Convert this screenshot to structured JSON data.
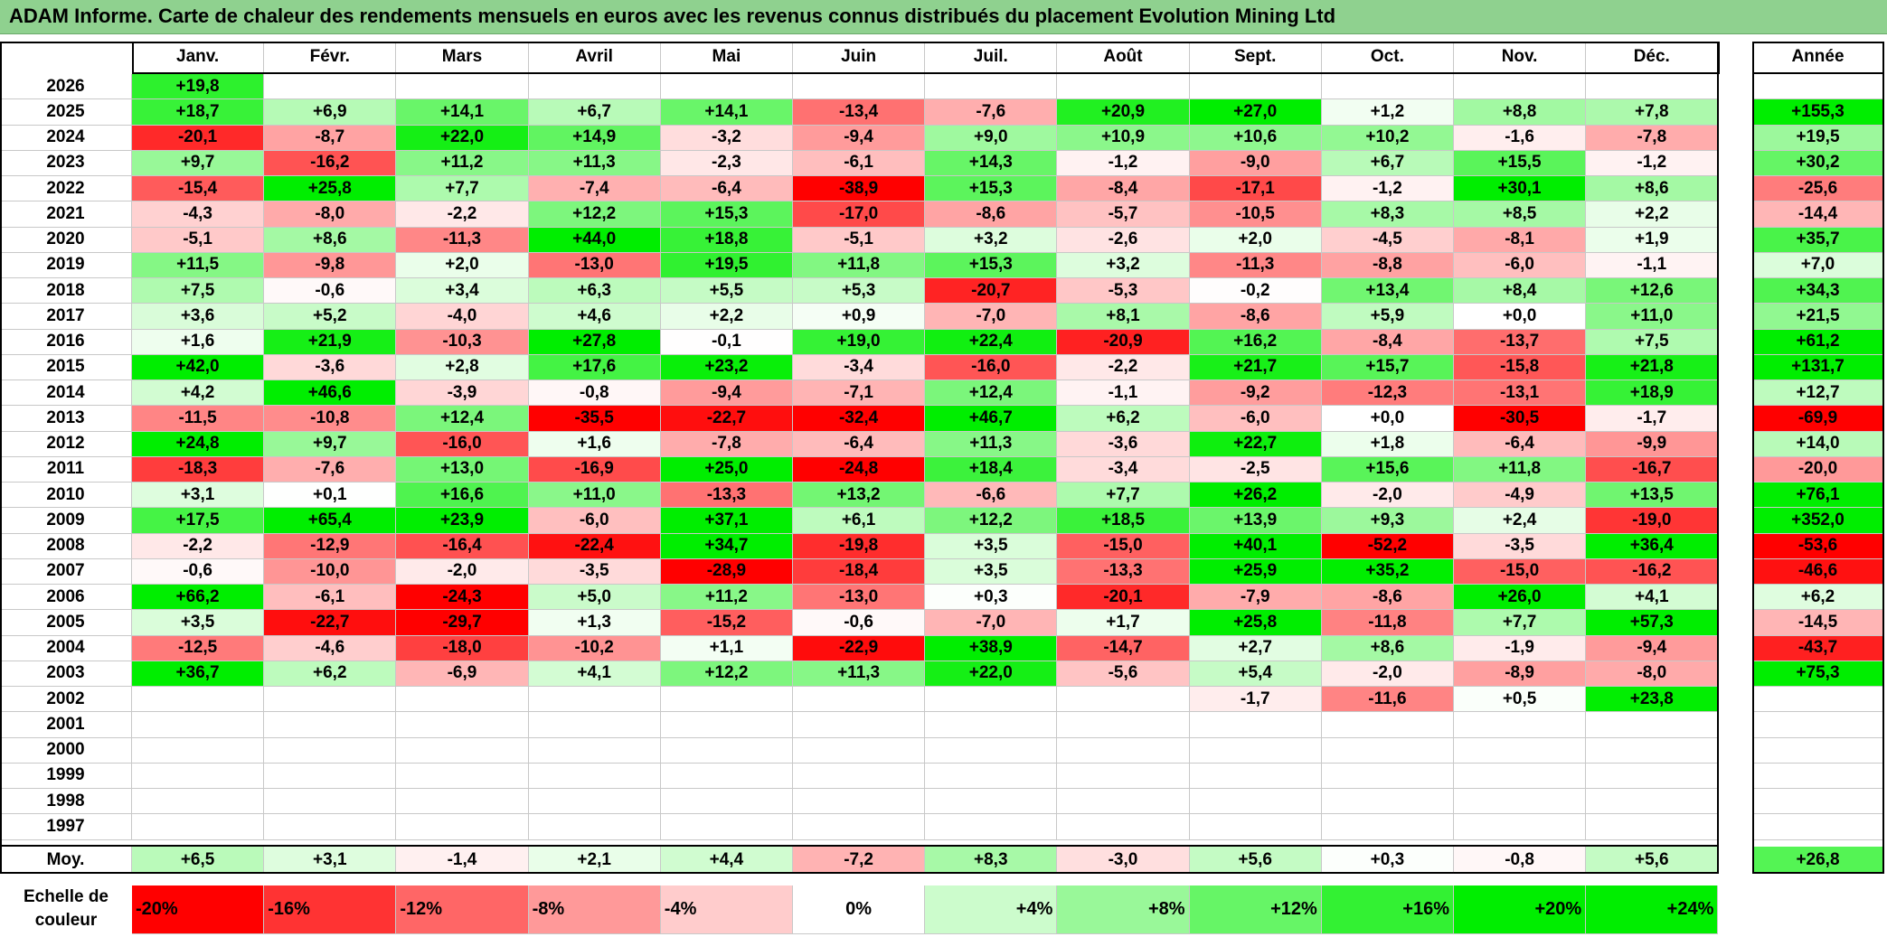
{
  "title": "ADAM Informe. Carte de chaleur des rendements mensuels en euros avec les revenus connus distribués du placement Evolution Mining Ltd",
  "chart_data": {
    "type": "heatmap",
    "months": [
      "Janv.",
      "Févr.",
      "Mars",
      "Avril",
      "Mai",
      "Juin",
      "Juil.",
      "Août",
      "Sept.",
      "Oct.",
      "Nov.",
      "Déc."
    ],
    "annual_header": "Année",
    "rows": [
      {
        "year": "2026",
        "values": [
          "+19,8",
          "",
          "",
          "",
          "",
          "",
          "",
          "",
          "",
          "",
          "",
          ""
        ],
        "annual": ""
      },
      {
        "year": "2025",
        "values": [
          "+18,7",
          "+6,9",
          "+14,1",
          "+6,7",
          "+14,1",
          "-13,4",
          "-7,6",
          "+20,9",
          "+27,0",
          "+1,2",
          "+8,8",
          "+7,8"
        ],
        "annual": "+155,3"
      },
      {
        "year": "2024",
        "values": [
          "-20,1",
          "-8,7",
          "+22,0",
          "+14,9",
          "-3,2",
          "-9,4",
          "+9,0",
          "+10,9",
          "+10,6",
          "+10,2",
          "-1,6",
          "-7,8"
        ],
        "annual": "+19,5"
      },
      {
        "year": "2023",
        "values": [
          "+9,7",
          "-16,2",
          "+11,2",
          "+11,3",
          "-2,3",
          "-6,1",
          "+14,3",
          "-1,2",
          "-9,0",
          "+6,7",
          "+15,5",
          "-1,2"
        ],
        "annual": "+30,2"
      },
      {
        "year": "2022",
        "values": [
          "-15,4",
          "+25,8",
          "+7,7",
          "-7,4",
          "-6,4",
          "-38,9",
          "+15,3",
          "-8,4",
          "-17,1",
          "-1,2",
          "+30,1",
          "+8,6"
        ],
        "annual": "-25,6"
      },
      {
        "year": "2021",
        "values": [
          "-4,3",
          "-8,0",
          "-2,2",
          "+12,2",
          "+15,3",
          "-17,0",
          "-8,6",
          "-5,7",
          "-10,5",
          "+8,3",
          "+8,5",
          "+2,2"
        ],
        "annual": "-14,4"
      },
      {
        "year": "2020",
        "values": [
          "-5,1",
          "+8,6",
          "-11,3",
          "+44,0",
          "+18,8",
          "-5,1",
          "+3,2",
          "-2,6",
          "+2,0",
          "-4,5",
          "-8,1",
          "+1,9"
        ],
        "annual": "+35,7"
      },
      {
        "year": "2019",
        "values": [
          "+11,5",
          "-9,8",
          "+2,0",
          "-13,0",
          "+19,5",
          "+11,8",
          "+15,3",
          "+3,2",
          "-11,3",
          "-8,8",
          "-6,0",
          "-1,1"
        ],
        "annual": "+7,0"
      },
      {
        "year": "2018",
        "values": [
          "+7,5",
          "-0,6",
          "+3,4",
          "+6,3",
          "+5,5",
          "+5,3",
          "-20,7",
          "-5,3",
          "-0,2",
          "+13,4",
          "+8,4",
          "+12,6"
        ],
        "annual": "+34,3"
      },
      {
        "year": "2017",
        "values": [
          "+3,6",
          "+5,2",
          "-4,0",
          "+4,6",
          "+2,2",
          "+0,9",
          "-7,0",
          "+8,1",
          "-8,6",
          "+5,9",
          "+0,0",
          "+11,0"
        ],
        "annual": "+21,5"
      },
      {
        "year": "2016",
        "values": [
          "+1,6",
          "+21,9",
          "-10,3",
          "+27,8",
          "-0,1",
          "+19,0",
          "+22,4",
          "-20,9",
          "+16,2",
          "-8,4",
          "-13,7",
          "+7,5"
        ],
        "annual": "+61,2"
      },
      {
        "year": "2015",
        "values": [
          "+42,0",
          "-3,6",
          "+2,8",
          "+17,6",
          "+23,2",
          "-3,4",
          "-16,0",
          "-2,2",
          "+21,7",
          "+15,7",
          "-15,8",
          "+21,8"
        ],
        "annual": "+131,7"
      },
      {
        "year": "2014",
        "values": [
          "+4,2",
          "+46,6",
          "-3,9",
          "-0,8",
          "-9,4",
          "-7,1",
          "+12,4",
          "-1,1",
          "-9,2",
          "-12,3",
          "-13,1",
          "+18,9"
        ],
        "annual": "+12,7"
      },
      {
        "year": "2013",
        "values": [
          "-11,5",
          "-10,8",
          "+12,4",
          "-35,5",
          "-22,7",
          "-32,4",
          "+46,7",
          "+6,2",
          "-6,0",
          "+0,0",
          "-30,5",
          "-1,7"
        ],
        "annual": "-69,9"
      },
      {
        "year": "2012",
        "values": [
          "+24,8",
          "+9,7",
          "-16,0",
          "+1,6",
          "-7,8",
          "-6,4",
          "+11,3",
          "-3,6",
          "+22,7",
          "+1,8",
          "-6,4",
          "-9,9"
        ],
        "annual": "+14,0"
      },
      {
        "year": "2011",
        "values": [
          "-18,3",
          "-7,6",
          "+13,0",
          "-16,9",
          "+25,0",
          "-24,8",
          "+18,4",
          "-3,4",
          "-2,5",
          "+15,6",
          "+11,8",
          "-16,7"
        ],
        "annual": "-20,0"
      },
      {
        "year": "2010",
        "values": [
          "+3,1",
          "+0,1",
          "+16,6",
          "+11,0",
          "-13,3",
          "+13,2",
          "-6,6",
          "+7,7",
          "+26,2",
          "-2,0",
          "-4,9",
          "+13,5"
        ],
        "annual": "+76,1"
      },
      {
        "year": "2009",
        "values": [
          "+17,5",
          "+65,4",
          "+23,9",
          "-6,0",
          "+37,1",
          "+6,1",
          "+12,2",
          "+18,5",
          "+13,9",
          "+9,3",
          "+2,4",
          "-19,0"
        ],
        "annual": "+352,0"
      },
      {
        "year": "2008",
        "values": [
          "-2,2",
          "-12,9",
          "-16,4",
          "-22,4",
          "+34,7",
          "-19,8",
          "+3,5",
          "-15,0",
          "+40,1",
          "-52,2",
          "-3,5",
          "+36,4"
        ],
        "annual": "-53,6"
      },
      {
        "year": "2007",
        "values": [
          "-0,6",
          "-10,0",
          "-2,0",
          "-3,5",
          "-28,9",
          "-18,4",
          "+3,5",
          "-13,3",
          "+25,9",
          "+35,2",
          "-15,0",
          "-16,2"
        ],
        "annual": "-46,6"
      },
      {
        "year": "2006",
        "values": [
          "+66,2",
          "-6,1",
          "-24,3",
          "+5,0",
          "+11,2",
          "-13,0",
          "+0,3",
          "-20,1",
          "-7,9",
          "-8,6",
          "+26,0",
          "+4,1"
        ],
        "annual": "+6,2"
      },
      {
        "year": "2005",
        "values": [
          "+3,5",
          "-22,7",
          "-29,7",
          "+1,3",
          "-15,2",
          "-0,6",
          "-7,0",
          "+1,7",
          "+25,8",
          "-11,8",
          "+7,7",
          "+57,3"
        ],
        "annual": "-14,5"
      },
      {
        "year": "2004",
        "values": [
          "-12,5",
          "-4,6",
          "-18,0",
          "-10,2",
          "+1,1",
          "-22,9",
          "+38,9",
          "-14,7",
          "+2,7",
          "+8,6",
          "-1,9",
          "-9,4"
        ],
        "annual": "-43,7"
      },
      {
        "year": "2003",
        "values": [
          "+36,7",
          "+6,2",
          "-6,9",
          "+4,1",
          "+12,2",
          "+11,3",
          "+22,0",
          "-5,6",
          "+5,4",
          "-2,0",
          "-8,9",
          "-8,0"
        ],
        "annual": "+75,3"
      },
      {
        "year": "2002",
        "values": [
          "",
          "",
          "",
          "",
          "",
          "",
          "",
          "",
          "-1,7",
          "-11,6",
          "+0,5",
          "+23,8"
        ],
        "annual": ""
      },
      {
        "year": "2001",
        "values": [
          "",
          "",
          "",
          "",
          "",
          "",
          "",
          "",
          "",
          "",
          "",
          ""
        ],
        "annual": ""
      },
      {
        "year": "2000",
        "values": [
          "",
          "",
          "",
          "",
          "",
          "",
          "",
          "",
          "",
          "",
          "",
          ""
        ],
        "annual": ""
      },
      {
        "year": "1999",
        "values": [
          "",
          "",
          "",
          "",
          "",
          "",
          "",
          "",
          "",
          "",
          "",
          ""
        ],
        "annual": ""
      },
      {
        "year": "1998",
        "values": [
          "",
          "",
          "",
          "",
          "",
          "",
          "",
          "",
          "",
          "",
          "",
          ""
        ],
        "annual": ""
      },
      {
        "year": "1997",
        "values": [
          "",
          "",
          "",
          "",
          "",
          "",
          "",
          "",
          "",
          "",
          "",
          ""
        ],
        "annual": ""
      }
    ],
    "average": {
      "label": "Moy.",
      "values": [
        "+6,5",
        "+3,1",
        "-1,4",
        "+2,1",
        "+4,4",
        "-7,2",
        "+8,3",
        "-3,0",
        "+5,6",
        "+0,3",
        "-0,8",
        "+5,6"
      ],
      "annual": "+26,8"
    },
    "color_scale": {
      "label": "Echelle de couleur",
      "stops": [
        "-20%",
        "-16%",
        "-12%",
        "-8%",
        "-4%",
        "0%",
        "+4%",
        "+8%",
        "+12%",
        "+16%",
        "+20%",
        "+24%"
      ]
    },
    "colors": {
      "negative": "#ff0000",
      "neutral": "#ffffff",
      "positive": "#00ee00",
      "title_bg": "#8fd18f"
    }
  }
}
